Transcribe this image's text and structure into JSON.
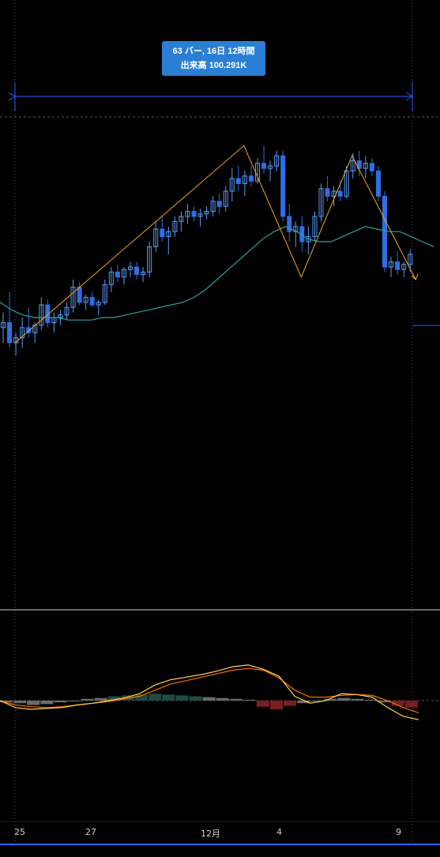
{
  "tooltip": {
    "line1": "63 バー, 16日 12時間",
    "line2": "出来高 100.291K"
  },
  "colors": {
    "background": "#000000",
    "candle_up": "#5b9cf6",
    "candle_down": "#2f6fe4",
    "ma_line": "#26a69a",
    "zigzag": "#f5a623",
    "measure": "#2962ff",
    "macd": "#ffd54f",
    "signal": "#ff6d00",
    "hist_pos": "#1f4a44",
    "hist_neg": "#7a1f1f",
    "hist_gray": "#6b6b6b"
  },
  "x_axis": {
    "labels": [
      "25",
      "27",
      "12月",
      "4",
      "9"
    ]
  },
  "chart_data": [
    {
      "type": "candlestick",
      "series": [
        {
          "name": "",
          "kind": "candles",
          "ohlc": [
            [
              0.36,
              0.42,
              0.3,
              0.38
            ],
            [
              0.38,
              0.5,
              0.28,
              0.3
            ],
            [
              0.3,
              0.34,
              0.25,
              0.32
            ],
            [
              0.32,
              0.4,
              0.28,
              0.36
            ],
            [
              0.36,
              0.44,
              0.32,
              0.34
            ],
            [
              0.34,
              0.38,
              0.3,
              0.37
            ],
            [
              0.37,
              0.48,
              0.35,
              0.45
            ],
            [
              0.45,
              0.47,
              0.36,
              0.38
            ],
            [
              0.38,
              0.42,
              0.34,
              0.4
            ],
            [
              0.4,
              0.43,
              0.37,
              0.41
            ],
            [
              0.41,
              0.46,
              0.39,
              0.44
            ],
            [
              0.44,
              0.55,
              0.42,
              0.52
            ],
            [
              0.52,
              0.54,
              0.45,
              0.46
            ],
            [
              0.46,
              0.49,
              0.43,
              0.48
            ],
            [
              0.48,
              0.5,
              0.44,
              0.45
            ],
            [
              0.45,
              0.47,
              0.41,
              0.46
            ],
            [
              0.46,
              0.55,
              0.45,
              0.53
            ],
            [
              0.53,
              0.6,
              0.5,
              0.58
            ],
            [
              0.58,
              0.61,
              0.54,
              0.56
            ],
            [
              0.56,
              0.6,
              0.53,
              0.59
            ],
            [
              0.59,
              0.62,
              0.56,
              0.6
            ],
            [
              0.6,
              0.62,
              0.55,
              0.57
            ],
            [
              0.57,
              0.6,
              0.54,
              0.58
            ],
            [
              0.58,
              0.7,
              0.56,
              0.68
            ],
            [
              0.68,
              0.78,
              0.66,
              0.75
            ],
            [
              0.75,
              0.8,
              0.7,
              0.72
            ],
            [
              0.72,
              0.76,
              0.65,
              0.74
            ],
            [
              0.74,
              0.8,
              0.72,
              0.78
            ],
            [
              0.78,
              0.82,
              0.74,
              0.8
            ],
            [
              0.8,
              0.85,
              0.77,
              0.82
            ],
            [
              0.82,
              0.84,
              0.78,
              0.8
            ],
            [
              0.8,
              0.83,
              0.76,
              0.81
            ],
            [
              0.81,
              0.84,
              0.79,
              0.82
            ],
            [
              0.82,
              0.88,
              0.8,
              0.86
            ],
            [
              0.86,
              0.89,
              0.81,
              0.84
            ],
            [
              0.84,
              0.92,
              0.82,
              0.9
            ],
            [
              0.9,
              0.99,
              0.86,
              0.95
            ],
            [
              0.95,
              1.0,
              0.9,
              0.93
            ],
            [
              0.93,
              0.98,
              0.88,
              0.96
            ],
            [
              0.96,
              1.0,
              0.92,
              0.94
            ],
            [
              0.94,
              1.03,
              0.93,
              1.01
            ],
            [
              1.01,
              1.08,
              0.97,
              0.99
            ],
            [
              0.99,
              1.02,
              0.94,
              1.0
            ],
            [
              1.0,
              1.06,
              0.98,
              1.04
            ],
            [
              1.04,
              1.06,
              0.78,
              0.8
            ],
            [
              0.8,
              0.85,
              0.7,
              0.74
            ],
            [
              0.74,
              0.78,
              0.68,
              0.76
            ],
            [
              0.76,
              0.8,
              0.66,
              0.7
            ],
            [
              0.7,
              0.76,
              0.65,
              0.72
            ],
            [
              0.72,
              0.82,
              0.7,
              0.8
            ],
            [
              0.8,
              0.93,
              0.78,
              0.91
            ],
            [
              0.91,
              0.96,
              0.86,
              0.88
            ],
            [
              0.88,
              0.92,
              0.84,
              0.9
            ],
            [
              0.9,
              0.94,
              0.86,
              0.88
            ],
            [
              0.88,
              1.0,
              0.87,
              0.98
            ],
            [
              0.98,
              1.05,
              0.95,
              1.02
            ],
            [
              1.02,
              1.06,
              0.96,
              0.99
            ],
            [
              0.99,
              1.04,
              0.95,
              1.01
            ],
            [
              1.01,
              1.03,
              0.96,
              0.98
            ],
            [
              0.98,
              1.0,
              0.86,
              0.88
            ],
            [
              0.88,
              0.9,
              0.58,
              0.6
            ],
            [
              0.6,
              0.64,
              0.56,
              0.62
            ],
            [
              0.62,
              0.66,
              0.57,
              0.59
            ],
            [
              0.59,
              0.62,
              0.56,
              0.61
            ],
            [
              0.61,
              0.67,
              0.58,
              0.65
            ]
          ]
        },
        {
          "name": "",
          "kind": "moving_average",
          "values": [
            0.46,
            0.43,
            0.41,
            0.4,
            0.4,
            0.4,
            0.39,
            0.39,
            0.39,
            0.4,
            0.4,
            0.41,
            0.42,
            0.43,
            0.44,
            0.45,
            0.46,
            0.48,
            0.51,
            0.55,
            0.59,
            0.63,
            0.67,
            0.71,
            0.74,
            0.76,
            0.74,
            0.71,
            0.7,
            0.7,
            0.72,
            0.74,
            0.76,
            0.75,
            0.74,
            0.74,
            0.72,
            0.7,
            0.68
          ]
        },
        {
          "name": "",
          "kind": "zigzag",
          "points": [
            [
              0,
              0.3
            ],
            [
              36,
              1.08
            ],
            [
              45,
              0.56
            ],
            [
              53,
              1.04
            ],
            [
              63,
              0.55
            ]
          ]
        }
      ]
    },
    {
      "type": "line",
      "series": [
        {
          "name": "",
          "kind": "macd",
          "values": [
            0.0,
            -0.08,
            -0.1,
            -0.09,
            -0.08,
            -0.05,
            -0.03,
            0.0,
            0.03,
            0.08,
            0.18,
            0.24,
            0.27,
            0.3,
            0.34,
            0.39,
            0.41,
            0.36,
            0.28,
            0.05,
            -0.03,
            0.0,
            0.08,
            0.07,
            0.04,
            -0.08,
            -0.18,
            -0.22
          ]
        },
        {
          "name": "",
          "kind": "signal",
          "values": [
            0.0,
            -0.05,
            -0.07,
            -0.08,
            -0.07,
            -0.05,
            -0.03,
            -0.01,
            0.02,
            0.05,
            0.12,
            0.19,
            0.23,
            0.27,
            0.31,
            0.35,
            0.37,
            0.35,
            0.26,
            0.12,
            0.04,
            0.04,
            0.06,
            0.07,
            0.06,
            0.0,
            -0.08,
            -0.14
          ]
        },
        {
          "name": "",
          "kind": "histogram",
          "values": [
            -0.02,
            -0.03,
            -0.05,
            -0.04,
            -0.02,
            0.0,
            0.02,
            0.03,
            0.05,
            0.06,
            0.07,
            0.08,
            0.07,
            0.06,
            0.05,
            0.04,
            0.03,
            0.02,
            0.01,
            -0.07,
            -0.1,
            -0.06,
            -0.03,
            -0.01,
            0.02,
            0.03,
            0.02,
            0.01,
            -0.02,
            -0.06,
            -0.08
          ]
        }
      ]
    }
  ]
}
